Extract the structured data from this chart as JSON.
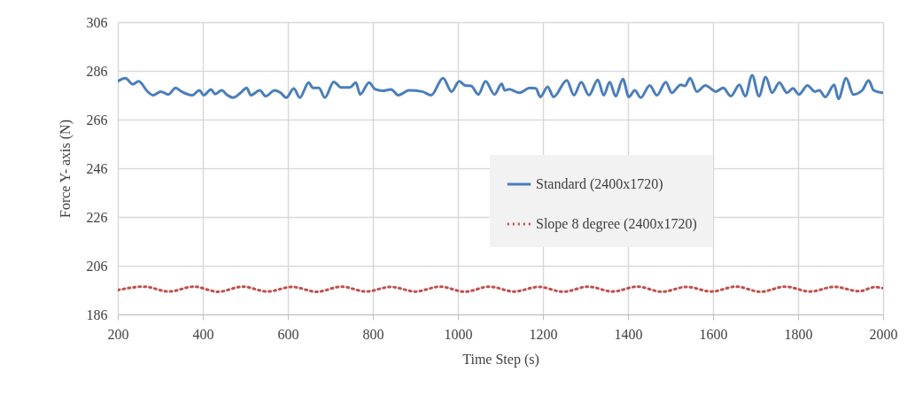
{
  "chart_data": {
    "type": "line",
    "xlabel": "Time Step (s)",
    "ylabel": "Force Y- axis (N)",
    "xlim": [
      200,
      2000
    ],
    "xticks": [
      200,
      400,
      600,
      800,
      1000,
      1200,
      1400,
      1600,
      1800,
      2000
    ],
    "ylim": [
      186,
      306
    ],
    "yticks": [
      186,
      206,
      226,
      246,
      266,
      286,
      306
    ],
    "grid": true,
    "legend": "right",
    "marker": "none",
    "series": [
      {
        "name": "Standard (2400x1720)",
        "color": "#4a7ebb",
        "line_style": "solid",
        "x": [
          200,
          218,
          235,
          249,
          270,
          283,
          301,
          319,
          336,
          350,
          375,
          392,
          402,
          419,
          429,
          444,
          458,
          471,
          489,
          503,
          513,
          534,
          548,
          569,
          583,
          596,
          614,
          628,
          649,
          659,
          673,
          687,
          708,
          725,
          746,
          760,
          770,
          791,
          805,
          823,
          843,
          860,
          885,
          916,
          937,
          965,
          985,
          1003,
          1017,
          1031,
          1048,
          1065,
          1086,
          1103,
          1110,
          1121,
          1135,
          1145,
          1169,
          1183,
          1194,
          1211,
          1225,
          1256,
          1273,
          1290,
          1308,
          1329,
          1343,
          1357,
          1371,
          1388,
          1402,
          1416,
          1430,
          1451,
          1468,
          1489,
          1503,
          1524,
          1534,
          1546,
          1562,
          1582,
          1607,
          1624,
          1642,
          1662,
          1676,
          1692,
          1708,
          1724,
          1739,
          1756,
          1774,
          1788,
          1802,
          1822,
          1840,
          1850,
          1864,
          1885,
          1895,
          1913,
          1930,
          1951,
          1966,
          1978,
          1998
        ],
        "values": [
          281.7,
          283,
          280.5,
          281.7,
          277.5,
          276,
          277.5,
          276.3,
          279,
          277.5,
          276,
          278,
          276,
          278.4,
          276.5,
          278,
          276,
          275,
          277,
          279,
          276,
          278,
          275.6,
          278,
          277,
          275,
          278.7,
          275,
          281.2,
          279,
          279,
          275,
          281.5,
          279.2,
          279.2,
          281.2,
          276.3,
          281.2,
          278.5,
          277.8,
          278.4,
          276,
          278,
          277.5,
          276,
          283,
          277.5,
          281.7,
          280,
          279.8,
          276.3,
          281.7,
          276.3,
          280.7,
          278,
          278.5,
          277.5,
          277,
          279,
          278.8,
          275.3,
          279.5,
          275.3,
          282.1,
          276,
          281.4,
          276,
          282.3,
          276,
          281.4,
          275.6,
          282.6,
          275.3,
          278,
          275,
          280,
          276,
          281.4,
          277,
          280.3,
          279.8,
          283,
          277.5,
          280,
          277.5,
          279,
          275.6,
          280.3,
          275.6,
          284.2,
          275.6,
          283.5,
          277,
          281.2,
          277,
          278.8,
          276.3,
          280,
          277.5,
          278,
          275.3,
          280.3,
          274.5,
          283,
          276.3,
          278,
          282.1,
          278,
          277
        ]
      },
      {
        "name": "Slope 8 degree (2400x1720)",
        "color": "#c0504d",
        "line_style": "dotted",
        "x": [
          200,
          262,
          320,
          379,
          436,
          494,
          552,
          610,
          668,
          726,
          784,
          842,
          900,
          958,
          1016,
          1074,
          1132,
          1190,
          1248,
          1306,
          1364,
          1422,
          1480,
          1538,
          1596,
          1654,
          1712,
          1770,
          1828,
          1886,
          1944,
          1980,
          2000
        ],
        "values": [
          196.0,
          197.4,
          195.4,
          197.4,
          195.3,
          197.4,
          195.4,
          197.3,
          195.3,
          197.4,
          195.4,
          197.3,
          195.4,
          197.4,
          195.3,
          197.4,
          195.4,
          197.3,
          195.3,
          197.4,
          195.4,
          197.4,
          195.3,
          197.3,
          195.4,
          197.4,
          195.3,
          197.4,
          195.4,
          197.3,
          195.5,
          197.2,
          196.8
        ]
      }
    ]
  }
}
